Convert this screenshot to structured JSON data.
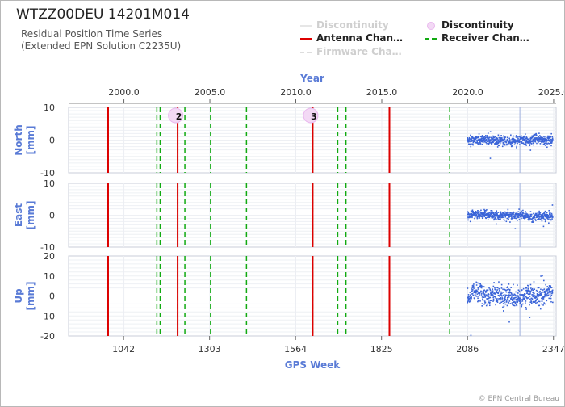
{
  "header": {
    "title": "WTZZ00DEU 14201M014",
    "subtitle_line1": "Residual Position Time Series",
    "subtitle_line2": "(Extended EPN Solution C2235U)"
  },
  "legend": {
    "items": [
      {
        "label": "Discontinuity",
        "style": "faint-line",
        "color": "#e6e6e6"
      },
      {
        "label": "Discontinuity",
        "style": "marker",
        "color": "#e9b8ee"
      },
      {
        "label": "Antenna Chan…",
        "style": "solid-line",
        "color": "#dd0000"
      },
      {
        "label": "Receiver Chan…",
        "style": "dashed-line",
        "color": "#11aa11"
      },
      {
        "label": "Firmware Cha…",
        "style": "faint-dashed-line",
        "color": "#dddddd"
      }
    ]
  },
  "chart_data": {
    "type": "scatter",
    "top_axis": {
      "label": "Year",
      "ticks": [
        "2000.0",
        "2005.0",
        "2010.0",
        "2015.0",
        "2020.0",
        "2025.0"
      ],
      "tick_values": [
        2000,
        2005,
        2010,
        2015,
        2020,
        2025
      ]
    },
    "bottom_axis": {
      "label": "GPS Week",
      "ticks": [
        "1042",
        "1303",
        "1564",
        "1825",
        "2086",
        "2347"
      ],
      "tick_values": [
        1042,
        1303,
        1564,
        1825,
        2086,
        2347
      ],
      "xlim": [
        875,
        2355
      ]
    },
    "year_week_ref": {
      "year": 2000,
      "week": 1043,
      "weeks_per_year": 52.18
    },
    "panels": [
      {
        "label": "North",
        "unit": "[mm]",
        "ylim": [
          -10,
          10
        ],
        "ticks": [
          10,
          0,
          -10
        ],
        "tick_labels": [
          "10",
          "0",
          "-10"
        ],
        "scatter_sd": 1.3
      },
      {
        "label": "East",
        "unit": "[mm]",
        "ylim": [
          -10,
          10
        ],
        "ticks": [
          10,
          0,
          -10
        ],
        "tick_labels": [
          "10",
          "0",
          "-10"
        ],
        "scatter_sd": 1.2
      },
      {
        "label": "Up",
        "unit": "[mm]",
        "ylim": [
          -20,
          20
        ],
        "ticks": [
          20,
          10,
          0,
          -10,
          -20
        ],
        "tick_labels": [
          "20",
          "10",
          "0",
          "-10",
          "-20"
        ],
        "scatter_sd": 4.5
      }
    ],
    "series_weeks": [
      2086,
      2345
    ],
    "vertical_marker_week": 2245,
    "antenna_changes": [
      995,
      1206,
      1616,
      1849
    ],
    "receiver_changes": [
      995,
      1143,
      1153,
      1206,
      1228,
      1306,
      1415,
      1616,
      1692,
      1717,
      2032
    ],
    "discontinuities": [
      {
        "week": 1200,
        "label": "2"
      },
      {
        "week": 1610,
        "label": "3"
      }
    ]
  },
  "footer": {
    "copyright": "© EPN Central Bureau"
  }
}
